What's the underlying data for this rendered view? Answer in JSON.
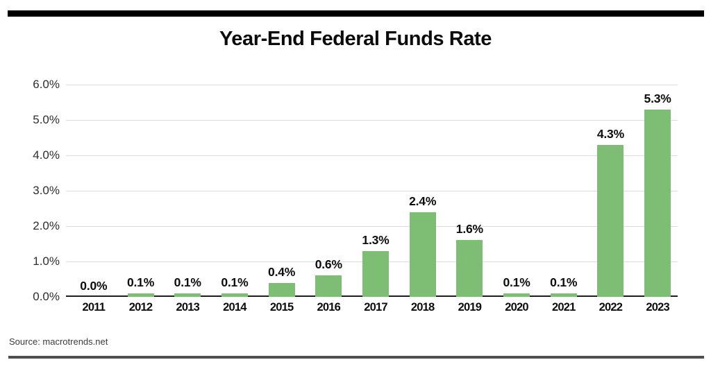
{
  "page": {
    "title": "Year-End Federal Funds Rate",
    "source": "Source: macrotrends.net"
  },
  "colors": {
    "bar_green": "#7dbd74",
    "gridline": "#dcdcdc",
    "axis_line": "#1c1c1c",
    "top_rule": "#000000",
    "bottom_rule": "#4f4f4f"
  },
  "chart_data": {
    "type": "bar",
    "title": "Year-End Federal Funds Rate",
    "categories": [
      "2011",
      "2012",
      "2013",
      "2014",
      "2015",
      "2016",
      "2017",
      "2018",
      "2019",
      "2020",
      "2021",
      "2022",
      "2023"
    ],
    "values": [
      0.0,
      0.1,
      0.1,
      0.1,
      0.4,
      0.6,
      1.3,
      2.4,
      1.6,
      0.1,
      0.1,
      4.3,
      5.3
    ],
    "bar_labels": [
      "0.0%",
      "0.1%",
      "0.1%",
      "0.1%",
      "0.4%",
      "0.6%",
      "1.3%",
      "2.4%",
      "1.6%",
      "0.1%",
      "0.1%",
      "4.3%",
      "5.3%"
    ],
    "xlabel": "",
    "ylabel": "",
    "ylim": [
      0,
      6
    ],
    "ytick_step": 1.0,
    "ytick_labels": [
      "0.0%",
      "1.0%",
      "2.0%",
      "3.0%",
      "4.0%",
      "5.0%",
      "6.0%"
    ],
    "grid": "horizontal",
    "legend": "none",
    "bar_color": "#7dbd74",
    "source": "Source: macrotrends.net"
  }
}
